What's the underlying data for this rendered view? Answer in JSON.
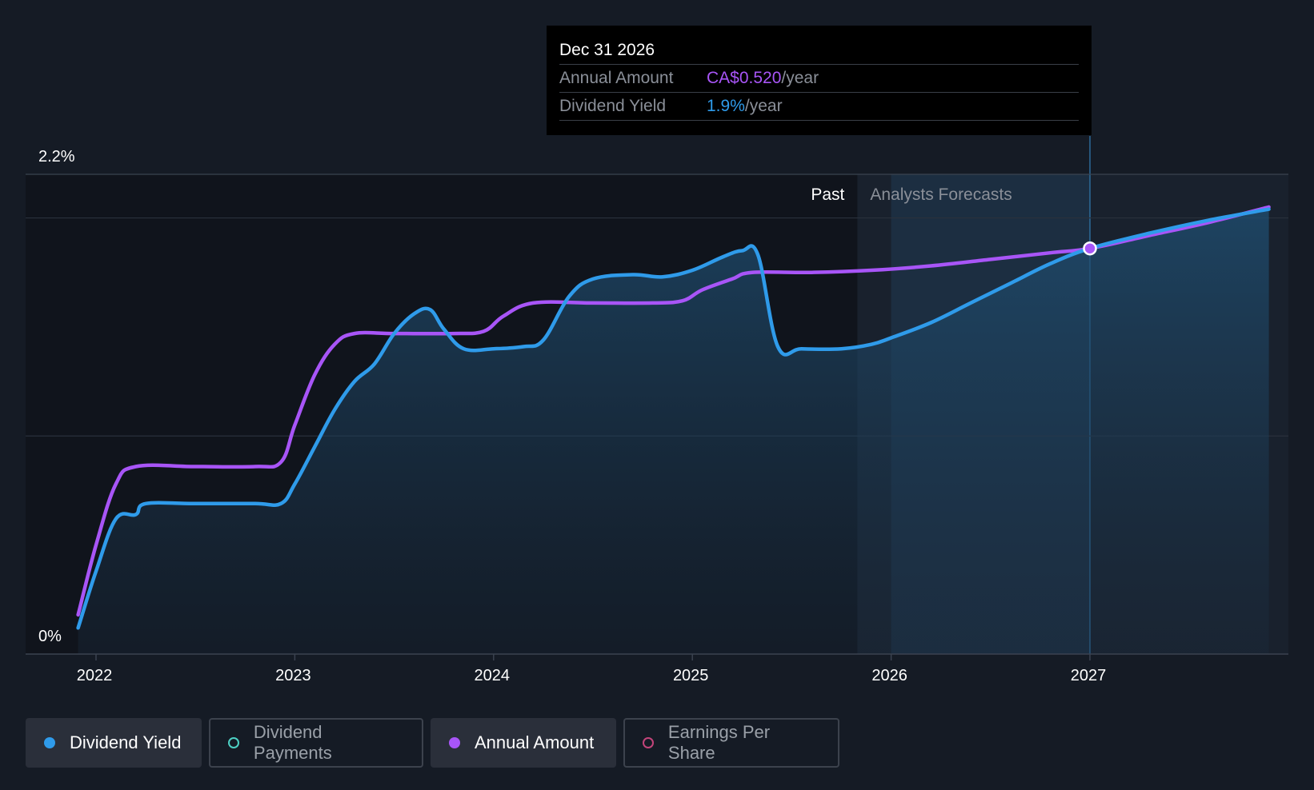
{
  "colors": {
    "background": "#151b25",
    "yield": "#2f9bea",
    "annual": "#a855f7",
    "payments": "#4dd0c4",
    "eps": "#c2447a"
  },
  "chart_data": {
    "type": "line",
    "x_axis": {
      "min": 2021.9,
      "max": 2027.9,
      "ticks": [
        2022,
        2023,
        2024,
        2025,
        2026,
        2027
      ]
    },
    "y_axis": {
      "min": 0,
      "max": 2.2,
      "tick_labels": [
        "2.2%",
        "0%"
      ]
    },
    "divider_x": 2025.83,
    "divider_labels": {
      "past": "Past",
      "forecast": "Analysts Forecasts"
    },
    "series": [
      {
        "name": "Dividend Yield",
        "color_key": "yield",
        "points": [
          [
            2021.91,
            0.12
          ],
          [
            2022.0,
            0.38
          ],
          [
            2022.1,
            0.62
          ],
          [
            2022.2,
            0.64
          ],
          [
            2022.25,
            0.69
          ],
          [
            2022.5,
            0.69
          ],
          [
            2022.8,
            0.69
          ],
          [
            2022.93,
            0.69
          ],
          [
            2023.0,
            0.78
          ],
          [
            2023.1,
            0.95
          ],
          [
            2023.2,
            1.12
          ],
          [
            2023.3,
            1.25
          ],
          [
            2023.4,
            1.33
          ],
          [
            2023.5,
            1.47
          ],
          [
            2023.6,
            1.56
          ],
          [
            2023.68,
            1.58
          ],
          [
            2023.75,
            1.49
          ],
          [
            2023.85,
            1.4
          ],
          [
            2024.0,
            1.4
          ],
          [
            2024.15,
            1.41
          ],
          [
            2024.25,
            1.44
          ],
          [
            2024.38,
            1.64
          ],
          [
            2024.5,
            1.72
          ],
          [
            2024.7,
            1.74
          ],
          [
            2024.85,
            1.73
          ],
          [
            2025.0,
            1.76
          ],
          [
            2025.15,
            1.82
          ],
          [
            2025.25,
            1.85
          ],
          [
            2025.33,
            1.83
          ],
          [
            2025.43,
            1.41
          ],
          [
            2025.55,
            1.4
          ],
          [
            2025.75,
            1.4
          ],
          [
            2025.9,
            1.42
          ],
          [
            2026.0,
            1.45
          ],
          [
            2026.2,
            1.52
          ],
          [
            2026.4,
            1.61
          ],
          [
            2026.6,
            1.7
          ],
          [
            2026.8,
            1.79
          ],
          [
            2027.0,
            1.86
          ],
          [
            2027.3,
            1.93
          ],
          [
            2027.6,
            1.99
          ],
          [
            2027.9,
            2.04
          ]
        ]
      },
      {
        "name": "Annual Amount",
        "color_key": "annual",
        "points": [
          [
            2021.91,
            0.18
          ],
          [
            2022.0,
            0.5
          ],
          [
            2022.1,
            0.78
          ],
          [
            2022.2,
            0.86
          ],
          [
            2022.5,
            0.86
          ],
          [
            2022.8,
            0.86
          ],
          [
            2022.93,
            0.88
          ],
          [
            2023.0,
            1.05
          ],
          [
            2023.1,
            1.28
          ],
          [
            2023.2,
            1.42
          ],
          [
            2023.3,
            1.47
          ],
          [
            2023.5,
            1.47
          ],
          [
            2023.8,
            1.47
          ],
          [
            2023.95,
            1.48
          ],
          [
            2024.05,
            1.55
          ],
          [
            2024.2,
            1.61
          ],
          [
            2024.5,
            1.61
          ],
          [
            2024.8,
            1.61
          ],
          [
            2024.95,
            1.62
          ],
          [
            2025.05,
            1.67
          ],
          [
            2025.2,
            1.72
          ],
          [
            2025.3,
            1.75
          ],
          [
            2025.6,
            1.75
          ],
          [
            2025.9,
            1.76
          ],
          [
            2026.2,
            1.78
          ],
          [
            2026.5,
            1.81
          ],
          [
            2026.8,
            1.84
          ],
          [
            2027.0,
            1.86
          ],
          [
            2027.3,
            1.92
          ],
          [
            2027.6,
            1.98
          ],
          [
            2027.9,
            2.05
          ]
        ]
      }
    ],
    "hover": {
      "x": 2027.0,
      "y": 1.86
    }
  },
  "tooltip": {
    "date": "Dec 31 2026",
    "annual_label": "Annual Amount",
    "annual_value": "CA$0.520",
    "annual_suffix": "/year",
    "yield_label": "Dividend Yield",
    "yield_value": "1.9%",
    "yield_suffix": "/year"
  },
  "legend": [
    {
      "label": "Dividend Yield",
      "active": true,
      "dot": "yield"
    },
    {
      "label": "Dividend Payments",
      "active": false,
      "dot": "payments"
    },
    {
      "label": "Annual Amount",
      "active": true,
      "dot": "annual"
    },
    {
      "label": "Earnings Per Share",
      "active": false,
      "dot": "eps"
    }
  ]
}
